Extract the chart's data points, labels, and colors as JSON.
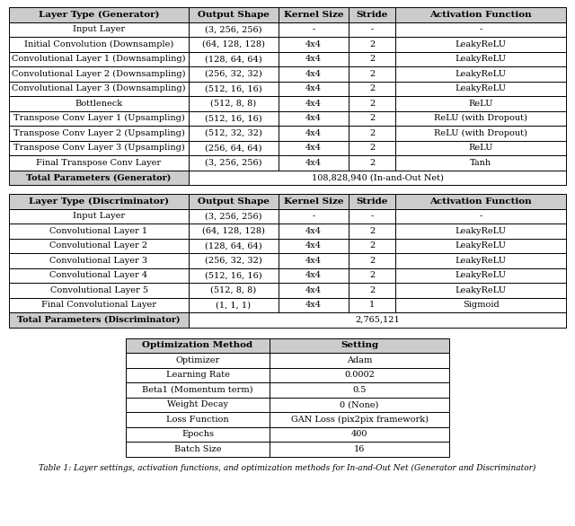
{
  "generator_headers": [
    "Layer Type (Generator)",
    "Output Shape",
    "Kernel Size",
    "Stride",
    "Activation Function"
  ],
  "generator_rows": [
    [
      "Input Layer",
      "(3, 256, 256)",
      "-",
      "-",
      "-"
    ],
    [
      "Initial Convolution (Downsample)",
      "(64, 128, 128)",
      "4x4",
      "2",
      "LeakyReLU"
    ],
    [
      "Convolutional Layer 1 (Downsampling)",
      "(128, 64, 64)",
      "4x4",
      "2",
      "LeakyReLU"
    ],
    [
      "Convolutional Layer 2 (Downsampling)",
      "(256, 32, 32)",
      "4x4",
      "2",
      "LeakyReLU"
    ],
    [
      "Convolutional Layer 3 (Downsampling)",
      "(512, 16, 16)",
      "4x4",
      "2",
      "LeakyReLU"
    ],
    [
      "Bottleneck",
      "(512, 8, 8)",
      "4x4",
      "2",
      "ReLU"
    ],
    [
      "Transpose Conv Layer 1 (Upsampling)",
      "(512, 16, 16)",
      "4x4",
      "2",
      "ReLU (with Dropout)"
    ],
    [
      "Transpose Conv Layer 2 (Upsampling)",
      "(512, 32, 32)",
      "4x4",
      "2",
      "ReLU (with Dropout)"
    ],
    [
      "Transpose Conv Layer 3 (Upsampling)",
      "(256, 64, 64)",
      "4x4",
      "2",
      "ReLU"
    ],
    [
      "Final Transpose Conv Layer",
      "(3, 256, 256)",
      "4x4",
      "2",
      "Tanh"
    ]
  ],
  "generator_total": [
    "Total Parameters (Generator)",
    "108,828,940 (In-and-Out Net)"
  ],
  "discriminator_headers": [
    "Layer Type (Discriminator)",
    "Output Shape",
    "Kernel Size",
    "Stride",
    "Activation Function"
  ],
  "discriminator_rows": [
    [
      "Input Layer",
      "(3, 256, 256)",
      "-",
      "-",
      "-"
    ],
    [
      "Convolutional Layer 1",
      "(64, 128, 128)",
      "4x4",
      "2",
      "LeakyReLU"
    ],
    [
      "Convolutional Layer 2",
      "(128, 64, 64)",
      "4x4",
      "2",
      "LeakyReLU"
    ],
    [
      "Convolutional Layer 3",
      "(256, 32, 32)",
      "4x4",
      "2",
      "LeakyReLU"
    ],
    [
      "Convolutional Layer 4",
      "(512, 16, 16)",
      "4x4",
      "2",
      "LeakyReLU"
    ],
    [
      "Convolutional Layer 5",
      "(512, 8, 8)",
      "4x4",
      "2",
      "LeakyReLU"
    ],
    [
      "Final Convolutional Layer",
      "(1, 1, 1)",
      "4x4",
      "1",
      "Sigmoid"
    ]
  ],
  "discriminator_total": [
    "Total Parameters (Discriminator)",
    "2,765,121"
  ],
  "optim_headers": [
    "Optimization Method",
    "Setting"
  ],
  "optim_rows": [
    [
      "Optimizer",
      "Adam"
    ],
    [
      "Learning Rate",
      "0.0002"
    ],
    [
      "Beta1 (Momentum term)",
      "0.5"
    ],
    [
      "Weight Decay",
      "0 (None)"
    ],
    [
      "Loss Function",
      "GAN Loss (pix2pix framework)"
    ],
    [
      "Epochs",
      "400"
    ],
    [
      "Batch Size",
      "16"
    ]
  ],
  "caption": "Table 1: Layer settings, activation functions, and optimization methods for In-and-Out Net (Generator and Discriminator)",
  "bg_color": "#ffffff",
  "header_bg": "#cccccc",
  "total_bg": "#cccccc",
  "border_color": "#000000",
  "text_color": "#000000",
  "font_size": 7.0,
  "header_font_size": 7.5,
  "caption_font_size": 6.5
}
